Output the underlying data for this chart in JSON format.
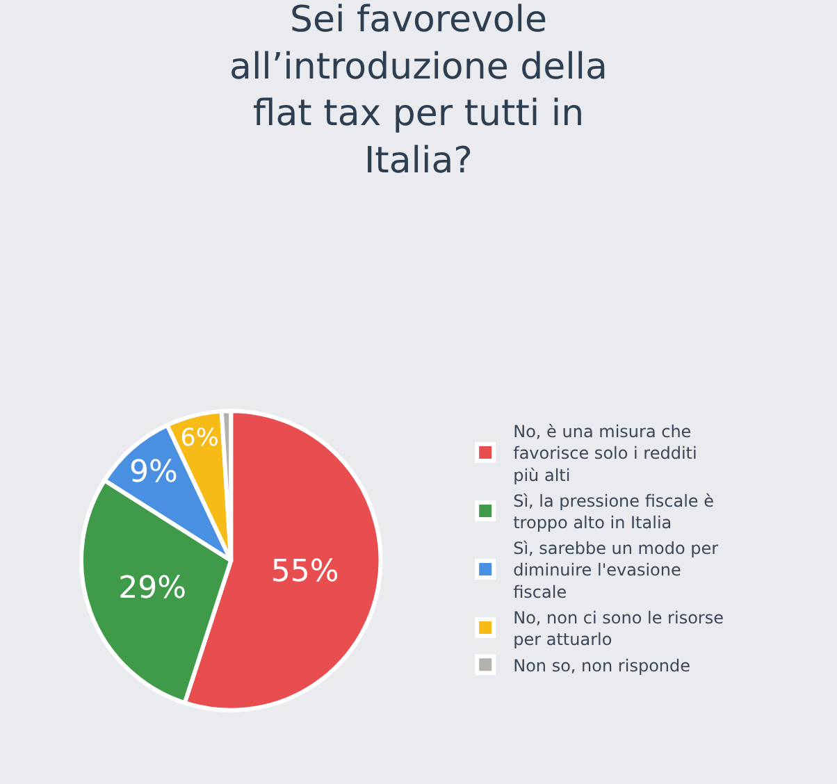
{
  "chart_data": {
    "type": "pie",
    "title": "Sei favorevole all’introduzione della flat tax per tutti in Italia?",
    "categories": [
      "No, è una misura che favorisce solo i redditi più alti",
      "Sì, la pressione fiscale è troppo alto in Italia",
      "Sì, sarebbe un modo per diminuire l'evasione fiscale",
      "No, non ci sono le risorse per attuarlo",
      "Non so, non risponde"
    ],
    "values": [
      55,
      29,
      9,
      6,
      1
    ],
    "value_labels": [
      "55%",
      "29%",
      "9%",
      "6%",
      null
    ],
    "colors": [
      "#e84d4f",
      "#3f9a4a",
      "#4a90e2",
      "#f6bb16",
      "#b4b2aa"
    ],
    "legend": "right"
  }
}
